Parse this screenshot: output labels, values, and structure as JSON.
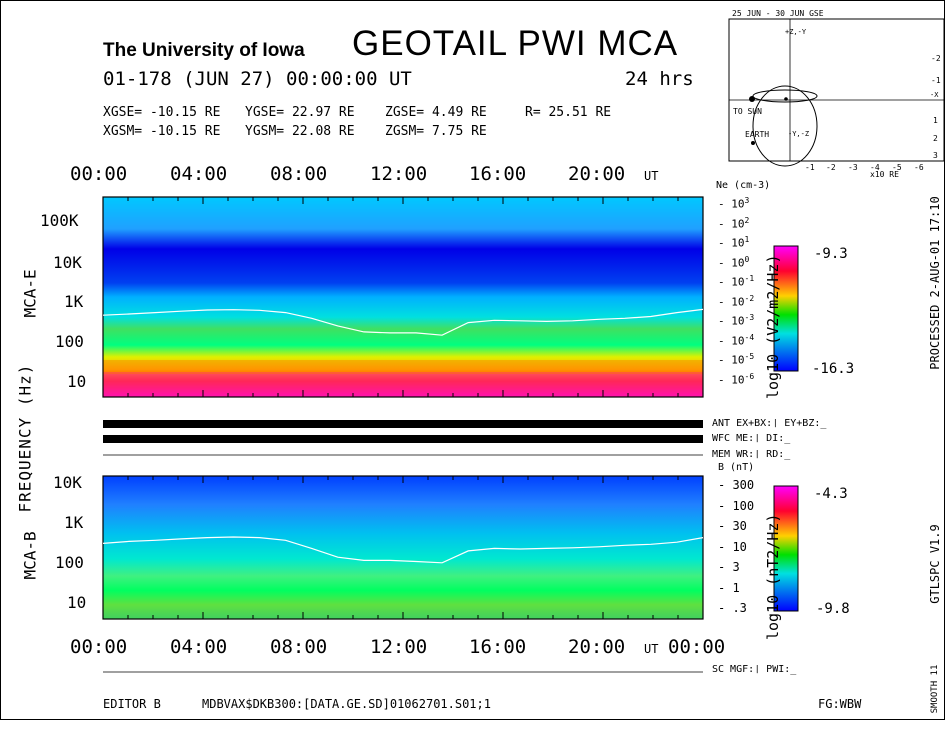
{
  "header": {
    "institution": "The University of Iowa",
    "title": "GEOTAIL PWI MCA",
    "date_line": "01-178 (JUN 27) 00:00:00 UT",
    "duration": "24 hrs",
    "gse": {
      "x": "XGSE= -10.15 RE",
      "y": "YGSE= 22.97 RE",
      "z": "ZGSE= 4.49 RE",
      "r": "R= 25.51 RE"
    },
    "gsm": {
      "x": "XGSM= -10.15 RE",
      "y": "YGSM= 22.08 RE",
      "z": "ZGSM= 7.75 RE"
    }
  },
  "time_axis": {
    "labels": [
      "00:00",
      "04:00",
      "08:00",
      "12:00",
      "16:00",
      "20:00"
    ],
    "unit": "UT",
    "end_label": "00:00"
  },
  "orbit_plot": {
    "title": "25 JUN - 30 JUN GSE",
    "sun_label": "TO SUN",
    "earth_label": "EARTH",
    "xunit": "x10 RE",
    "xticks": [
      "-1",
      "-2",
      "-3",
      "-4",
      "-5",
      "-6"
    ],
    "yticks": [
      "-2",
      "-1",
      "1",
      "2",
      "3"
    ],
    "axis_labels": [
      "+Z,-Y",
      "-X",
      "-Y,-Z"
    ]
  },
  "mca_e": {
    "label": "MCA-E",
    "freq_ticks": [
      "100K",
      "10K",
      "1K",
      "100",
      "10"
    ],
    "ne_title": "Ne (cm-3)",
    "ne_ticks": [
      "10^3",
      "10^2",
      "10^1",
      "10^0",
      "10^-1",
      "10^-2",
      "10^-3",
      "10^-4",
      "10^-5",
      "10^-6"
    ],
    "colorbar": {
      "max": "-9.3",
      "min": "-16.3",
      "label": "log10 (V2/m2/Hz)"
    }
  },
  "status": {
    "ant": "ANT EX+BX:❘ EY+BZ:_",
    "wfc": "WFC ME:❘   DI:_",
    "mem": "MEM WR:❘   RD:_",
    "sc": "SC MGF:❘  PWI:_"
  },
  "mca_b": {
    "label": "MCA-B",
    "freq_ticks": [
      "10K",
      "1K",
      "100",
      "10"
    ],
    "b_title": "B (nT)",
    "b_ticks": [
      "300",
      "100",
      "30",
      "10",
      "3",
      "1",
      ".3"
    ],
    "colorbar": {
      "max": "-4.3",
      "min": "-9.8",
      "label": "log10 (nT2/Hz)"
    }
  },
  "ylabel": "FREQUENCY (Hz)",
  "right_labels": {
    "processed": "PROCESSED 2-AUG-01 17:10",
    "version": "GTLSPC V1.9",
    "smooth": "SMOOTH 11"
  },
  "footer": {
    "editor": "EDITOR B",
    "path": "MDBVAX$DKB300:[DATA.GE.SD]01062701.S01;1",
    "fg": "FG:WBW"
  },
  "chart_data": [
    {
      "type": "heatmap",
      "title": "MCA-E",
      "x_range_hours": [
        0,
        24
      ],
      "y_range_hz": [
        5,
        300000
      ],
      "y_scale": "log",
      "color_range": [
        -16.3,
        -9.3
      ],
      "overlay_line": "Ne (cm-3)",
      "overlay_hz_by_hour": [
        450,
        480,
        520,
        560,
        600,
        610,
        590,
        520,
        380,
        250,
        180,
        170,
        170,
        150,
        300,
        340,
        330,
        320,
        330,
        360,
        380,
        420,
        520,
        620
      ]
    },
    {
      "type": "heatmap",
      "title": "MCA-B",
      "x_range_hours": [
        0,
        24
      ],
      "y_range_hz": [
        5,
        20000
      ],
      "y_scale": "log",
      "color_range": [
        -9.8,
        -4.3
      ],
      "overlay_line": "B (nT)",
      "overlay_hz_by_hour": [
        400,
        450,
        480,
        520,
        560,
        580,
        560,
        480,
        300,
        180,
        150,
        150,
        140,
        130,
        260,
        300,
        290,
        300,
        310,
        330,
        360,
        380,
        430,
        560
      ]
    }
  ]
}
